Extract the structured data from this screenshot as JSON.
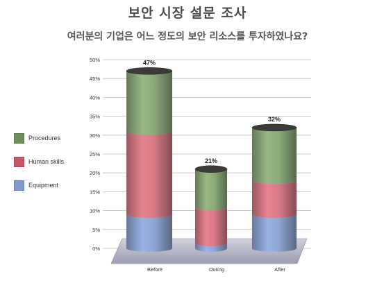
{
  "header": {
    "title": "보안 시장 설문 조사",
    "subtitle": "여러분의 기업은 어느 정도의 보안 리소스를 투자하였나요?"
  },
  "chart_data": {
    "type": "bar",
    "stacked": true,
    "categories": [
      "Before",
      "During",
      "After"
    ],
    "series": [
      {
        "name": "Equipment",
        "color": "#8fa6d4",
        "values": [
          9,
          1.5,
          9
        ]
      },
      {
        "name": "Human skills",
        "color": "#d77a86",
        "values": [
          22,
          9.5,
          9
        ]
      },
      {
        "name": "Procedures",
        "color": "#8daa7b",
        "values": [
          16,
          10,
          14
        ]
      }
    ],
    "totals": [
      "47%",
      "21%",
      "32%"
    ],
    "yticks": [
      "0%",
      "5%",
      "10%",
      "15%",
      "20%",
      "25%",
      "30%",
      "35%",
      "40%",
      "45%",
      "50%"
    ],
    "ylim": [
      0,
      50
    ],
    "grid": true,
    "legend": "left"
  }
}
